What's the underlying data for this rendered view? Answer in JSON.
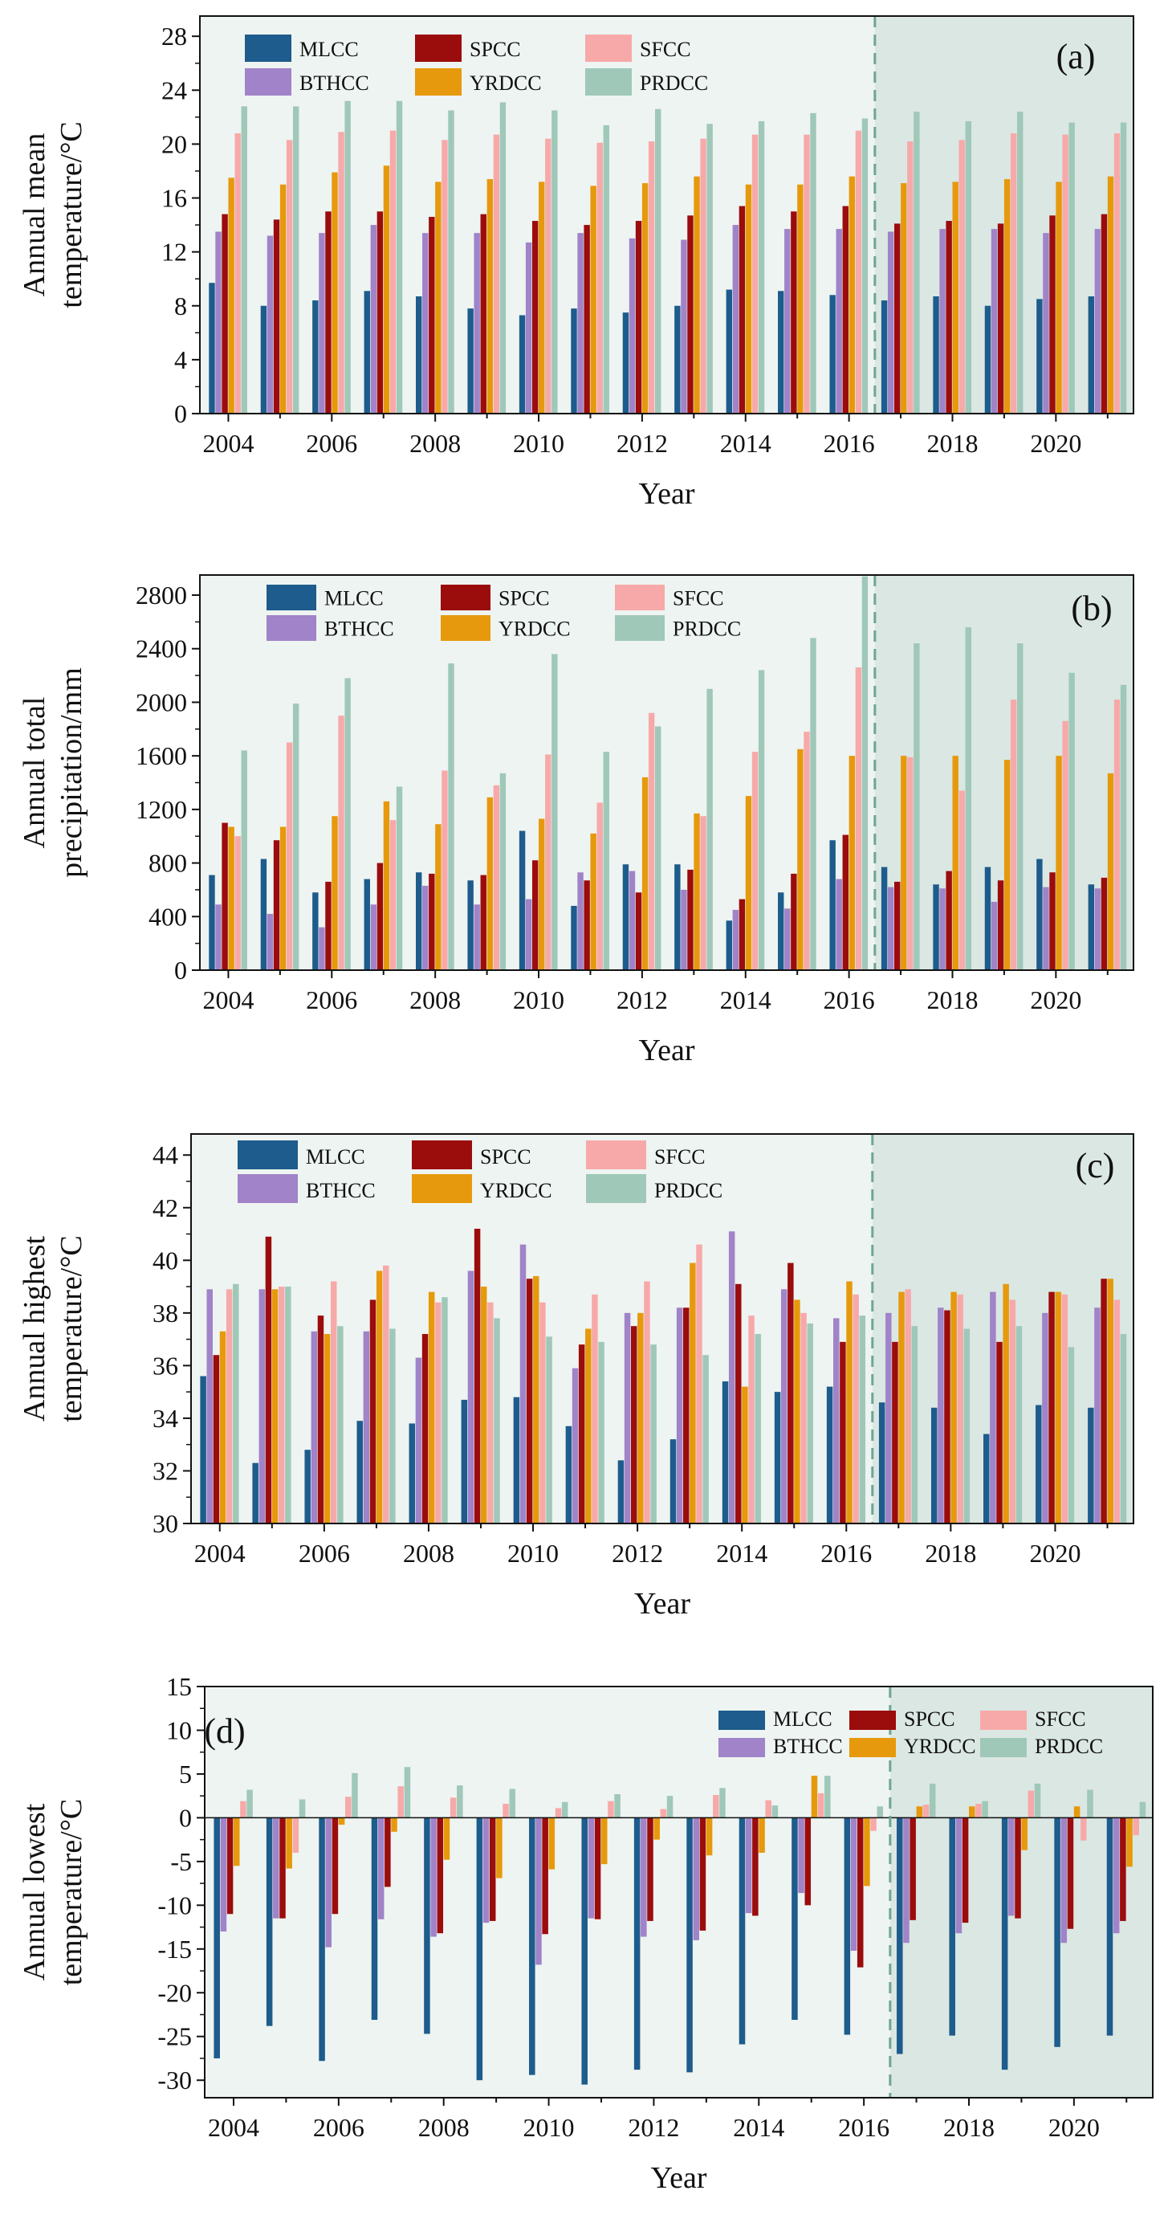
{
  "chart_data": [
    {
      "type": "bar",
      "panel_label": "(a)",
      "xlabel": "Year",
      "ylabel": [
        "Annual mean",
        "temperature/°C"
      ],
      "ylim": [
        0,
        29.5
      ],
      "yticks": [
        0,
        4,
        8,
        12,
        16,
        20,
        24,
        28
      ],
      "years": [
        2004,
        2005,
        2006,
        2007,
        2008,
        2009,
        2010,
        2011,
        2012,
        2013,
        2014,
        2015,
        2016,
        2017,
        2018,
        2019,
        2020,
        2021
      ],
      "xtick_years": [
        2004,
        2006,
        2008,
        2010,
        2012,
        2014,
        2016,
        2018,
        2020
      ],
      "legend": [
        [
          "MLCC",
          "SPCC",
          "SFCC"
        ],
        [
          "BTHCC",
          "YRDCC",
          "PRDCC"
        ]
      ],
      "series": [
        {
          "name": "MLCC",
          "color": "#1d5c8c",
          "values": [
            9.7,
            8.0,
            8.4,
            9.1,
            8.7,
            7.8,
            7.3,
            7.8,
            7.5,
            8.0,
            9.2,
            9.1,
            8.8,
            8.4,
            8.7,
            8.0,
            8.5,
            8.7
          ]
        },
        {
          "name": "BTHCC",
          "color": "#a083c8",
          "values": [
            13.5,
            13.2,
            13.4,
            14.0,
            13.4,
            13.4,
            12.7,
            13.4,
            13.0,
            12.9,
            14.0,
            13.7,
            13.7,
            13.5,
            13.7,
            13.7,
            13.4,
            13.7
          ]
        },
        {
          "name": "SPCC",
          "color": "#9b0c0c",
          "values": [
            14.8,
            14.4,
            15.0,
            15.0,
            14.6,
            14.8,
            14.3,
            14.0,
            14.3,
            14.7,
            15.4,
            15.0,
            15.4,
            14.1,
            14.3,
            14.1,
            14.7,
            14.8
          ]
        },
        {
          "name": "YRDCC",
          "color": "#e6990c",
          "values": [
            17.5,
            17.0,
            17.9,
            18.4,
            17.2,
            17.4,
            17.2,
            16.9,
            17.1,
            17.6,
            17.0,
            17.0,
            17.6,
            17.1,
            17.2,
            17.4,
            17.2,
            17.6
          ]
        },
        {
          "name": "SFCC",
          "color": "#f7a9a9",
          "values": [
            20.8,
            20.3,
            20.9,
            21.0,
            20.3,
            20.7,
            20.4,
            20.1,
            20.2,
            20.4,
            20.7,
            20.7,
            21.0,
            20.2,
            20.3,
            20.8,
            20.7,
            20.8
          ]
        },
        {
          "name": "PRDCC",
          "color": "#9fc8b9",
          "values": [
            22.8,
            22.8,
            23.2,
            23.2,
            22.5,
            23.1,
            22.5,
            21.4,
            22.6,
            21.5,
            21.7,
            22.3,
            21.9,
            22.4,
            21.7,
            22.4,
            21.6,
            21.6
          ]
        }
      ]
    },
    {
      "type": "bar",
      "panel_label": "(b)",
      "xlabel": "Year",
      "ylabel": [
        "Annual total",
        "precipitation/mm"
      ],
      "ylim": [
        0,
        2950
      ],
      "yticks": [
        0,
        400,
        800,
        1200,
        1600,
        2000,
        2400,
        2800
      ],
      "years": [
        2004,
        2005,
        2006,
        2007,
        2008,
        2009,
        2010,
        2011,
        2012,
        2013,
        2014,
        2015,
        2016,
        2017,
        2018,
        2019,
        2020,
        2021
      ],
      "xtick_years": [
        2004,
        2006,
        2008,
        2010,
        2012,
        2014,
        2016,
        2018,
        2020
      ],
      "legend": [
        [
          "MLCC",
          "SPCC",
          "SFCC"
        ],
        [
          "BTHCC",
          "YRDCC",
          "PRDCC"
        ]
      ],
      "series": [
        {
          "name": "MLCC",
          "color": "#1d5c8c",
          "values": [
            710,
            830,
            580,
            680,
            730,
            670,
            1040,
            480,
            790,
            790,
            370,
            580,
            970,
            770,
            640,
            770,
            830,
            640
          ]
        },
        {
          "name": "BTHCC",
          "color": "#a083c8",
          "values": [
            490,
            420,
            320,
            490,
            630,
            490,
            530,
            730,
            740,
            600,
            450,
            460,
            680,
            620,
            610,
            510,
            620,
            610
          ]
        },
        {
          "name": "SPCC",
          "color": "#9b0c0c",
          "values": [
            1100,
            970,
            660,
            800,
            720,
            710,
            820,
            670,
            580,
            750,
            530,
            720,
            1010,
            660,
            740,
            670,
            730,
            690
          ]
        },
        {
          "name": "YRDCC",
          "color": "#e6990c",
          "values": [
            1070,
            1070,
            1150,
            1260,
            1090,
            1290,
            1130,
            1020,
            1440,
            1170,
            1300,
            1650,
            1600,
            1600,
            1600,
            1570,
            1600,
            1470
          ]
        },
        {
          "name": "SFCC",
          "color": "#f7a9a9",
          "values": [
            1000,
            1700,
            1900,
            1120,
            1490,
            1380,
            1610,
            1250,
            1920,
            1150,
            1630,
            1780,
            2260,
            1590,
            1340,
            2020,
            1860,
            2020
          ]
        },
        {
          "name": "PRDCC",
          "color": "#9fc8b9",
          "values": [
            1640,
            1990,
            2180,
            1370,
            2290,
            1470,
            2360,
            1630,
            1820,
            2100,
            2240,
            2480,
            2940,
            2440,
            2560,
            2440,
            2220,
            2130
          ]
        }
      ]
    },
    {
      "type": "bar",
      "panel_label": "(c)",
      "xlabel": "Year",
      "ylabel": [
        "Annual highest",
        "temperature/°C"
      ],
      "ylim": [
        30,
        44.8
      ],
      "yticks": [
        30,
        32,
        34,
        36,
        38,
        40,
        42,
        44
      ],
      "years": [
        2004,
        2005,
        2006,
        2007,
        2008,
        2009,
        2010,
        2011,
        2012,
        2013,
        2014,
        2015,
        2016,
        2017,
        2018,
        2019,
        2020,
        2021
      ],
      "xtick_years": [
        2004,
        2006,
        2008,
        2010,
        2012,
        2014,
        2016,
        2018,
        2020
      ],
      "legend": [
        [
          "MLCC",
          "SPCC",
          "SFCC"
        ],
        [
          "BTHCC",
          "YRDCC",
          "PRDCC"
        ]
      ],
      "series": [
        {
          "name": "MLCC",
          "color": "#1d5c8c",
          "values": [
            35.6,
            32.3,
            32.8,
            33.9,
            33.8,
            34.7,
            34.8,
            33.7,
            32.4,
            33.2,
            35.4,
            35.0,
            35.2,
            34.6,
            34.4,
            33.4,
            34.5,
            34.4
          ]
        },
        {
          "name": "BTHCC",
          "color": "#a083c8",
          "values": [
            38.9,
            38.9,
            37.3,
            37.3,
            36.3,
            39.6,
            40.6,
            35.9,
            38.0,
            38.2,
            41.1,
            38.9,
            37.8,
            38.0,
            38.2,
            38.8,
            38.0,
            38.2
          ]
        },
        {
          "name": "SPCC",
          "color": "#9b0c0c",
          "values": [
            36.4,
            40.9,
            37.9,
            38.5,
            37.2,
            41.2,
            39.3,
            36.8,
            37.5,
            38.2,
            39.1,
            39.9,
            36.9,
            36.9,
            38.1,
            36.9,
            38.8,
            39.3
          ]
        },
        {
          "name": "YRDCC",
          "color": "#e6990c",
          "values": [
            37.3,
            38.9,
            37.2,
            39.6,
            38.8,
            39.0,
            39.4,
            37.4,
            38.0,
            39.9,
            35.2,
            38.5,
            39.2,
            38.8,
            38.8,
            39.1,
            38.8,
            39.3
          ]
        },
        {
          "name": "SFCC",
          "color": "#f7a9a9",
          "values": [
            38.9,
            39.0,
            39.2,
            39.8,
            38.4,
            38.4,
            38.4,
            38.7,
            39.2,
            40.6,
            37.9,
            38.0,
            38.7,
            38.9,
            38.7,
            38.5,
            38.7,
            38.5
          ]
        },
        {
          "name": "PRDCC",
          "color": "#9fc8b9",
          "values": [
            39.1,
            39.0,
            37.5,
            37.4,
            38.6,
            37.8,
            37.1,
            36.9,
            36.8,
            36.4,
            37.2,
            37.6,
            37.9,
            37.5,
            37.4,
            37.5,
            36.7,
            37.2
          ]
        }
      ]
    },
    {
      "type": "bar",
      "panel_label": "(d)",
      "xlabel": "Year",
      "ylabel": [
        "Annual lowest",
        "temperature/°C"
      ],
      "ylim": [
        -32,
        15
      ],
      "yticks": [
        -30,
        -25,
        -20,
        -15,
        -10,
        -5,
        0,
        5,
        10,
        15
      ],
      "years": [
        2004,
        2005,
        2006,
        2007,
        2008,
        2009,
        2010,
        2011,
        2012,
        2013,
        2014,
        2015,
        2016,
        2017,
        2018,
        2019,
        2020,
        2021
      ],
      "xtick_years": [
        2004,
        2006,
        2008,
        2010,
        2012,
        2014,
        2016,
        2018,
        2020
      ],
      "legend": [
        [
          "MLCC",
          "SPCC",
          "SFCC"
        ],
        [
          "BTHCC",
          "YRDCC",
          "PRDCC"
        ]
      ],
      "series": [
        {
          "name": "MLCC",
          "color": "#1d5c8c",
          "values": [
            -27.5,
            -23.8,
            -27.8,
            -23.1,
            -24.7,
            -30.0,
            -29.4,
            -30.5,
            -28.8,
            -29.1,
            -25.9,
            -23.1,
            -24.8,
            -27.0,
            -24.9,
            -28.8,
            -26.2,
            -24.9
          ]
        },
        {
          "name": "BTHCC",
          "color": "#a083c8",
          "values": [
            -13.0,
            -11.5,
            -14.8,
            -11.6,
            -13.6,
            -12.0,
            -16.8,
            -11.5,
            -13.6,
            -14.0,
            -10.9,
            -8.6,
            -15.2,
            -14.3,
            -13.2,
            -11.2,
            -14.3,
            -13.2
          ]
        },
        {
          "name": "SPCC",
          "color": "#9b0c0c",
          "values": [
            -11.0,
            -11.5,
            -11.0,
            -7.9,
            -13.2,
            -11.8,
            -13.3,
            -11.6,
            -11.8,
            -12.9,
            -11.2,
            -10.0,
            -17.1,
            -11.7,
            -12.0,
            -11.5,
            -12.7,
            -11.8
          ]
        },
        {
          "name": "YRDCC",
          "color": "#e6990c",
          "values": [
            -5.5,
            -5.8,
            -0.8,
            -1.6,
            -4.8,
            -6.9,
            -5.9,
            -5.3,
            -2.5,
            -4.3,
            -4.0,
            4.8,
            -7.8,
            1.3,
            1.3,
            -3.7,
            1.3,
            -5.6
          ]
        },
        {
          "name": "SFCC",
          "color": "#f7a9a9",
          "values": [
            1.9,
            -4.0,
            2.4,
            3.6,
            2.3,
            1.6,
            1.1,
            1.9,
            1.0,
            2.6,
            2.0,
            2.8,
            -1.5,
            1.5,
            1.6,
            3.1,
            -2.6,
            -2.0
          ]
        },
        {
          "name": "PRDCC",
          "color": "#9fc8b9",
          "values": [
            3.2,
            2.1,
            5.1,
            5.8,
            3.7,
            3.3,
            1.8,
            2.7,
            2.5,
            3.4,
            1.4,
            4.8,
            1.3,
            3.9,
            1.9,
            3.9,
            3.2,
            1.8
          ]
        }
      ]
    }
  ]
}
